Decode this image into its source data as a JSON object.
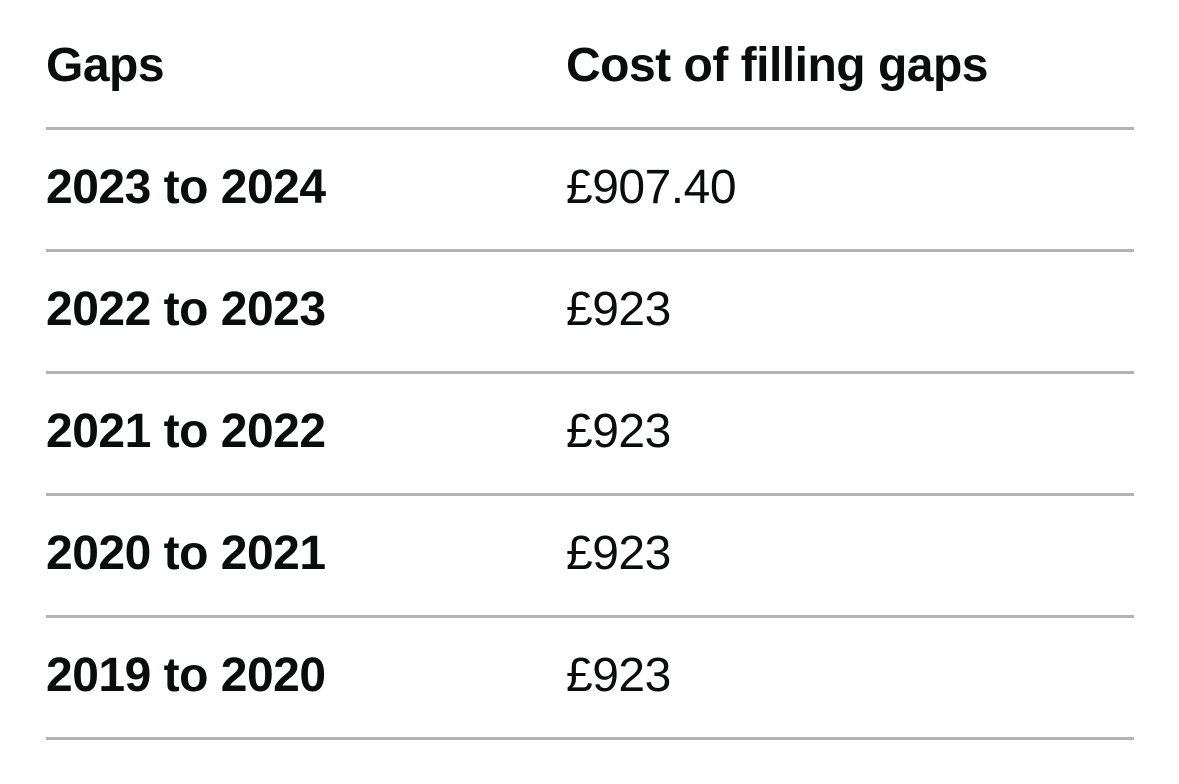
{
  "table": {
    "columns": [
      {
        "label": "Gaps"
      },
      {
        "label": "Cost of filling gaps"
      }
    ],
    "rows": [
      {
        "gap": "2023 to 2024",
        "cost": "£907.40"
      },
      {
        "gap": "2022 to 2023",
        "cost": "£923"
      },
      {
        "gap": "2021 to 2022",
        "cost": "£923"
      },
      {
        "gap": "2020 to 2021",
        "cost": "£923"
      },
      {
        "gap": "2019 to 2020",
        "cost": "£923"
      }
    ],
    "colors": {
      "text": "#0b0c0c",
      "border": "#b1b4b6",
      "background": "#ffffff"
    }
  }
}
